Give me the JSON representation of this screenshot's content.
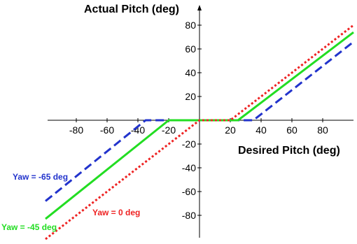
{
  "chart_data": {
    "type": "line",
    "xlabel": "Desired Pitch (deg)",
    "ylabel": "Actual Pitch (deg)",
    "xlim": [
      -100,
      100
    ],
    "ylim": [
      -100,
      85
    ],
    "x_ticks": [
      -80,
      -60,
      -40,
      -20,
      20,
      40,
      60,
      80
    ],
    "y_ticks": [
      80,
      60,
      40,
      20,
      -20,
      -40,
      -60,
      -80
    ],
    "series": [
      {
        "name": "Yaw = -65 deg",
        "color": "#2233cc",
        "dash": "dashed",
        "x": [
          -100,
          -35,
          -15,
          35,
          100
        ],
        "y": [
          -68,
          0,
          0,
          0,
          66
        ]
      },
      {
        "name": "Yaw = -45 deg",
        "color": "#22dd22",
        "dash": "solid",
        "x": [
          -100,
          -20,
          25,
          100
        ],
        "y": [
          -83,
          0,
          0,
          74
        ]
      },
      {
        "name": "Yaw = 0 deg",
        "color": "#ee2222",
        "dash": "dotted",
        "x": [
          -100,
          0,
          20,
          100
        ],
        "y": [
          -100,
          0,
          0,
          80
        ]
      }
    ],
    "annotations": [
      {
        "text": "Yaw = -65 deg",
        "color": "#2233cc"
      },
      {
        "text": "Yaw = 0 deg",
        "color": "#ee2222"
      },
      {
        "text": "Yaw = -45 deg",
        "color": "#22dd22"
      }
    ],
    "grid": false,
    "legend": "none"
  }
}
